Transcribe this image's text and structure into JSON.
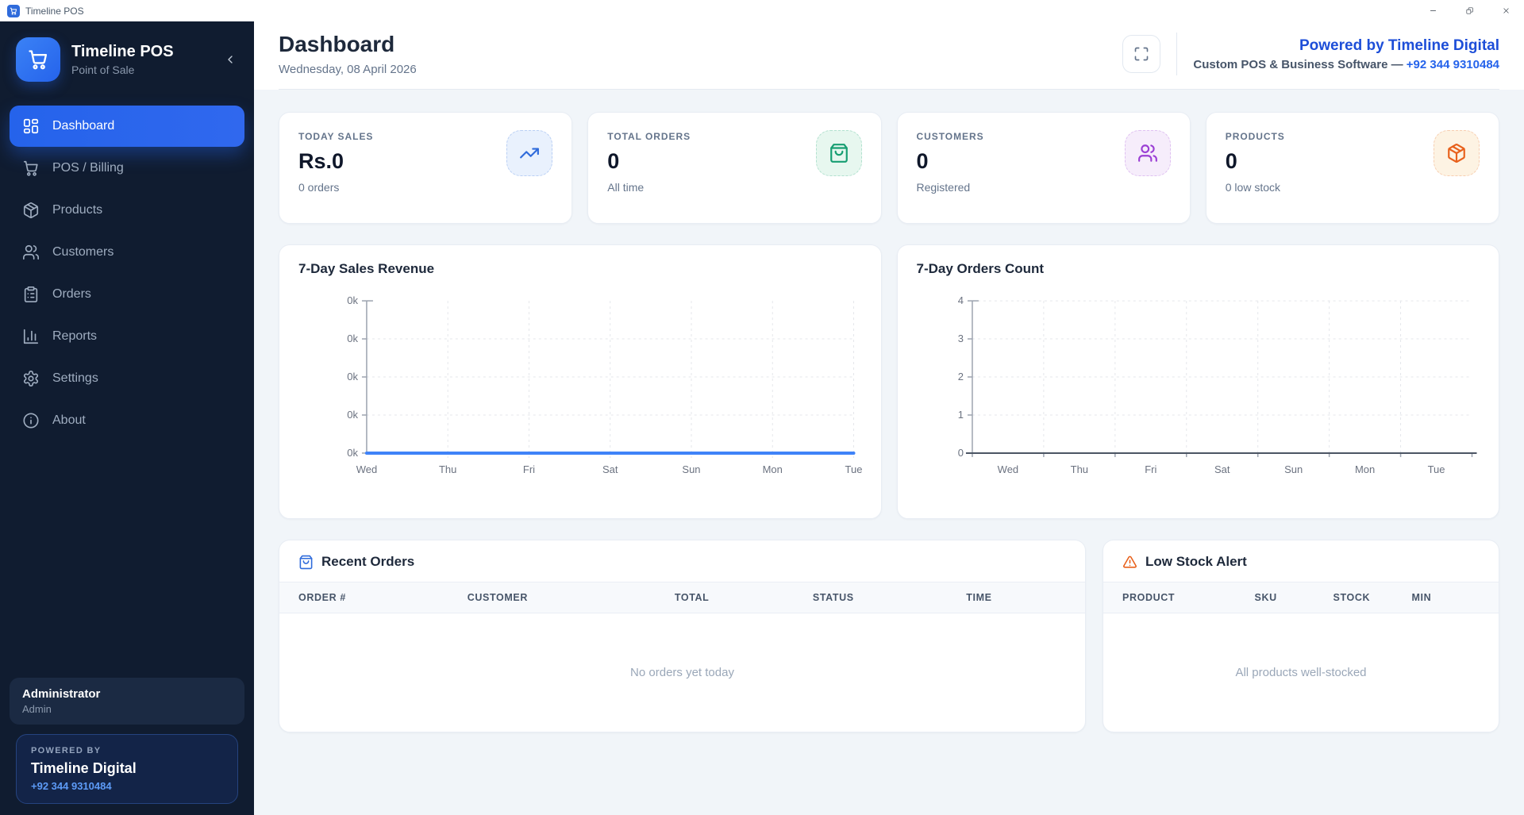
{
  "window": {
    "title": "Timeline POS",
    "controls": {
      "minimize": "minimize-icon",
      "maximize": "restore-icon",
      "close": "close-icon"
    }
  },
  "sidebar": {
    "brand": {
      "name": "Timeline POS",
      "subtitle": "Point of Sale",
      "logo_icon": "cart-icon",
      "collapse_icon": "chevron-left-icon"
    },
    "items": [
      {
        "label": "Dashboard",
        "icon": "dashboard-icon",
        "active": true
      },
      {
        "label": "POS / Billing",
        "icon": "cart-icon",
        "active": false
      },
      {
        "label": "Products",
        "icon": "package-icon",
        "active": false
      },
      {
        "label": "Customers",
        "icon": "users-icon",
        "active": false
      },
      {
        "label": "Orders",
        "icon": "clipboard-list-icon",
        "active": false
      },
      {
        "label": "Reports",
        "icon": "bar-chart-icon",
        "active": false
      },
      {
        "label": "Settings",
        "icon": "gear-icon",
        "active": false
      },
      {
        "label": "About",
        "icon": "info-icon",
        "active": false
      }
    ],
    "user": {
      "name": "Administrator",
      "role": "Admin"
    },
    "powered_by": {
      "label": "POWERED BY",
      "company": "Timeline Digital",
      "phone": "+92 344 9310484"
    },
    "colors": {
      "background": "#101c30",
      "active_item": "#2563eb"
    }
  },
  "header": {
    "title": "Dashboard",
    "date": "Wednesday, 08 April 2026",
    "fullscreen_icon": "maximize-icon",
    "brand_title": "Powered by Timeline Digital",
    "brand_subtitle": "Custom POS & Business Software — ",
    "brand_phone": "+92 344 9310484",
    "colors": {
      "brand_title": "#1d4ed8",
      "phone": "#2563eb"
    }
  },
  "stats": [
    {
      "label": "TODAY SALES",
      "value": "Rs.0",
      "sub": "0 orders",
      "icon": "trending-up-icon",
      "accent": "#2f6bdb",
      "tile_bg": "#e9f1fd"
    },
    {
      "label": "TOTAL ORDERS",
      "value": "0",
      "sub": "All time",
      "icon": "shopping-bag-icon",
      "accent": "#179e72",
      "tile_bg": "#e7f7ef"
    },
    {
      "label": "CUSTOMERS",
      "value": "0",
      "sub": "Registered",
      "icon": "users-icon",
      "accent": "#9b3fd4",
      "tile_bg": "#f6edfb"
    },
    {
      "label": "PRODUCTS",
      "value": "0",
      "sub": "0 low stock",
      "icon": "package-icon",
      "accent": "#e8611c",
      "tile_bg": "#fdf3e3"
    }
  ],
  "chart_data": [
    {
      "type": "line",
      "title": "7-Day Sales Revenue",
      "categories": [
        "Wed",
        "Thu",
        "Fri",
        "Sat",
        "Sun",
        "Mon",
        "Tue"
      ],
      "values": [
        0,
        0,
        0,
        0,
        0,
        0,
        0
      ],
      "y_tick_labels": [
        "0k",
        "0k",
        "0k",
        "0k",
        "0k"
      ],
      "ylim": [
        0,
        1
      ],
      "line_color": "#3f83f8",
      "grid": true,
      "legend": false
    },
    {
      "type": "bar",
      "title": "7-Day Orders Count",
      "categories": [
        "Wed",
        "Thu",
        "Fri",
        "Sat",
        "Sun",
        "Mon",
        "Tue"
      ],
      "values": [
        0,
        0,
        0,
        0,
        0,
        0,
        0
      ],
      "y_ticks": [
        0,
        1,
        2,
        3,
        4
      ],
      "ylim": [
        0,
        4
      ],
      "bar_color": "#3f83f8",
      "grid": true,
      "legend": false
    }
  ],
  "recent_orders": {
    "icon": "shopping-bag-icon",
    "title": "Recent Orders",
    "columns": [
      "ORDER #",
      "CUSTOMER",
      "TOTAL",
      "STATUS",
      "TIME"
    ],
    "rows": [],
    "empty_text": "No orders yet today"
  },
  "low_stock": {
    "icon": "alert-triangle-icon",
    "title": "Low Stock Alert",
    "columns": [
      "PRODUCT",
      "SKU",
      "STOCK",
      "MIN"
    ],
    "rows": [],
    "empty_text": "All products well-stocked"
  }
}
